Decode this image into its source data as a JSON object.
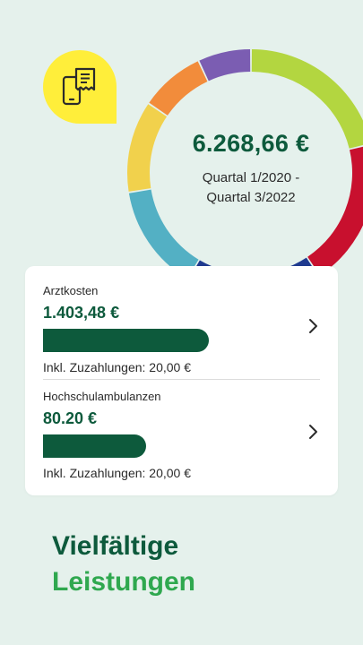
{
  "summary": {
    "total_amount": "6.268,66 €",
    "period_line1": "Quartal 1/2020 -",
    "period_line2": "Quartal 3/2022"
  },
  "donut_segments": [
    {
      "color": "#b3d640",
      "share": 0.189
    },
    {
      "color": "#c8102e",
      "share": 0.173
    },
    {
      "color": "#1f3a8f",
      "share": 0.159
    },
    {
      "color": "#53b0c4",
      "share": 0.124
    },
    {
      "color": "#f1d14c",
      "share": 0.107
    },
    {
      "color": "#f28c3b",
      "share": 0.076
    },
    {
      "color": "#7b5db2",
      "share": 0.062
    }
  ],
  "icons": {
    "badge": "receipt-phone-icon",
    "chevron": "chevron-right-icon"
  },
  "entries": [
    {
      "label": "Arztkosten",
      "amount": "1.403,48 €",
      "progress": 1.0,
      "note": "Inkl. Zuzahlungen: 20,00 €"
    },
    {
      "label": "Hochschulambulanzen",
      "amount": "80.20 €",
      "progress": 0.62,
      "note": "Inkl. Zuzahlungen: 20,00 €"
    }
  ],
  "headline": {
    "line1": "Vielfältige",
    "line2": "Leistungen"
  },
  "colors": {
    "background": "#e5f1ec",
    "primary_green": "#0d5a3c",
    "accent_green": "#2fa84f",
    "badge_yellow": "#ffee3a"
  }
}
